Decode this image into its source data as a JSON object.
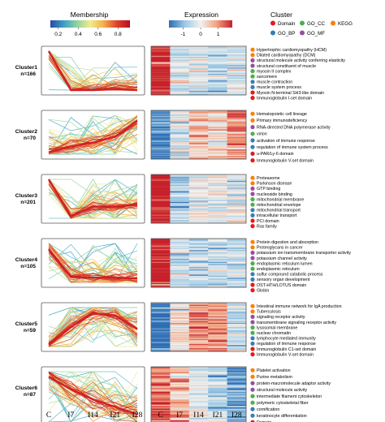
{
  "legends": {
    "membership": {
      "title": "Membership",
      "ticks": [
        "0.2",
        "0.4",
        "0.6",
        "0.8"
      ],
      "tick_values": [
        0.2,
        0.4,
        0.6,
        0.8
      ],
      "range": [
        0.12,
        0.92
      ]
    },
    "expression": {
      "title": "Expression",
      "ticks": [
        "-1",
        "0",
        "1"
      ],
      "tick_values": [
        -1,
        0,
        1
      ],
      "range": [
        -1.8,
        1.8
      ]
    },
    "cluster": {
      "title": "Cluster",
      "items": [
        {
          "label": "Domain",
          "color": "#e41a1c"
        },
        {
          "label": "GO_CC",
          "color": "#4daf4a"
        },
        {
          "label": "KEGG",
          "color": "#ff7f00"
        },
        {
          "label": "GO_BP",
          "color": "#377eb8"
        },
        {
          "label": "GO_MF",
          "color": "#984ea3"
        }
      ]
    }
  },
  "colors": {
    "membership_scale": [
      "#2c4aa6",
      "#3aa0c8",
      "#8fd3a0",
      "#f1ec8a",
      "#f6b04a",
      "#e0432a",
      "#b40f20"
    ],
    "expression_scale": [
      "#2f6db3",
      "#9cc9e4",
      "#f3f1ee",
      "#f2a27f",
      "#c7202b"
    ],
    "centroid": "#d31f26"
  },
  "chart_data": {
    "type": "line",
    "x": [
      "C",
      "I7",
      "I14",
      "I21",
      "I28"
    ],
    "xlabels_style": "serif",
    "clusters": [
      {
        "name": "Cluster1",
        "n_label": "n=166",
        "centroid": [
          1.0,
          0.0,
          0.0,
          0.02,
          0.0
        ],
        "heatmap_profile": [
          1.9,
          -0.3,
          -0.35,
          -0.4,
          -0.35
        ],
        "terms": [
          {
            "label": "Hypertrophic cardiomyopathy (HCM)",
            "category": "KEGG"
          },
          {
            "label": "Dilated cardiomyopathy (DCM)",
            "category": "KEGG"
          },
          {
            "label": "structural molecule activity conferring elasticity",
            "category": "GO_MF"
          },
          {
            "label": "structural constituent of muscle",
            "category": "GO_MF"
          },
          {
            "label": "myosin II complex",
            "category": "GO_CC"
          },
          {
            "label": "sarcomere",
            "category": "GO_CC"
          },
          {
            "label": "muscle contraction",
            "category": "GO_BP"
          },
          {
            "label": "muscle system process",
            "category": "GO_BP"
          },
          {
            "label": "Myosin N-terminal SH3-like domain",
            "category": "Domain"
          },
          {
            "label": "Immunoglobulin I-set domain",
            "category": "Domain"
          }
        ]
      },
      {
        "name": "Cluster2",
        "n_label": "n=70",
        "centroid": [
          0.05,
          0.2,
          0.3,
          0.45,
          0.85
        ],
        "heatmap_profile": [
          -1.5,
          -0.2,
          0.5,
          0.3,
          1.0
        ],
        "terms": [
          {
            "label": "Hematopoietic cell lineage",
            "category": "KEGG"
          },
          {
            "label": "Primary immunodeficiency",
            "category": "KEGG"
          },
          {
            "label": "RNA-directed DNA polymerase activity",
            "category": "GO_MF"
          },
          {
            "label": "virion",
            "category": "GO_CC"
          },
          {
            "label": "activation of immune response",
            "category": "GO_BP"
          },
          {
            "label": "regulation of immune system process",
            "category": "GO_BP"
          },
          {
            "label": "u-PAR/Ly-6 domain",
            "category": "Domain"
          },
          {
            "label": "Immunoglobulin V-set domain",
            "category": "Domain"
          }
        ]
      },
      {
        "name": "Cluster3",
        "n_label": "n=201",
        "centroid": [
          1.0,
          0.05,
          0.3,
          0.3,
          0.35
        ],
        "heatmap_profile": [
          1.9,
          -0.6,
          -0.1,
          -0.1,
          -0.15
        ],
        "terms": [
          {
            "label": "Proteasome",
            "category": "KEGG"
          },
          {
            "label": "Parkinson disease",
            "category": "KEGG"
          },
          {
            "label": "GTP binding",
            "category": "GO_MF"
          },
          {
            "label": "nucleoside binding",
            "category": "GO_MF"
          },
          {
            "label": "mitochondrial membrane",
            "category": "GO_CC"
          },
          {
            "label": "mitochondrial envelope",
            "category": "GO_CC"
          },
          {
            "label": "mitochondrial transport",
            "category": "GO_BP"
          },
          {
            "label": "intracellular transport",
            "category": "GO_BP"
          },
          {
            "label": "PCI domain",
            "category": "Domain"
          },
          {
            "label": "Ras family",
            "category": "Domain"
          }
        ]
      },
      {
        "name": "Cluster4",
        "n_label": "n=105",
        "centroid": [
          0.85,
          0.15,
          0.12,
          0.12,
          0.1
        ],
        "heatmap_profile": [
          1.9,
          -0.4,
          -0.45,
          -0.5,
          -0.45
        ],
        "terms": [
          {
            "label": "Protein digestion and absorption",
            "category": "KEGG"
          },
          {
            "label": "Proteoglycans in cancer",
            "category": "KEGG"
          },
          {
            "label": "potassium ion transmembrane transporter activity",
            "category": "GO_MF"
          },
          {
            "label": "potassium channel activity",
            "category": "GO_MF"
          },
          {
            "label": "endoplasmic reticulum lumen",
            "category": "GO_CC"
          },
          {
            "label": "endoplasmic reticulum",
            "category": "GO_CC"
          },
          {
            "label": "sulfur compound catabolic process",
            "category": "GO_BP"
          },
          {
            "label": "sensory organ development",
            "category": "GO_BP"
          },
          {
            "label": "OST-HTH/LOTUS domain",
            "category": "Domain"
          },
          {
            "label": "Globin",
            "category": "Domain"
          }
        ]
      },
      {
        "name": "Cluster5",
        "n_label": "n=59",
        "centroid": [
          0.05,
          0.5,
          0.85,
          0.8,
          0.45
        ],
        "heatmap_profile": [
          -1.7,
          0.1,
          0.9,
          1.0,
          -0.5
        ],
        "terms": [
          {
            "label": "Intestinal immune network for IgA production",
            "category": "KEGG"
          },
          {
            "label": "Tuberculosis",
            "category": "KEGG"
          },
          {
            "label": "signaling receptor activity",
            "category": "GO_MF"
          },
          {
            "label": "transmembrane signaling receptor activity",
            "category": "GO_MF"
          },
          {
            "label": "lysosomal membrane",
            "category": "GO_CC"
          },
          {
            "label": "nuclear chromatin",
            "category": "GO_CC"
          },
          {
            "label": "lymphocyte mediated immunity",
            "category": "GO_BP"
          },
          {
            "label": "regulation of immune response",
            "category": "GO_BP"
          },
          {
            "label": "Immunoglobulin C1-set domain",
            "category": "Domain"
          },
          {
            "label": "Immunoglobulin V-set domain",
            "category": "Domain"
          }
        ]
      },
      {
        "name": "Cluster6",
        "n_label": "n=87",
        "centroid": [
          0.9,
          0.65,
          0.45,
          0.3,
          0.15
        ],
        "heatmap_profile": [
          1.3,
          0.6,
          -0.1,
          -0.6,
          -1.3
        ],
        "terms": [
          {
            "label": "Platelet activation",
            "category": "KEGG"
          },
          {
            "label": "Purine metabolism",
            "category": "KEGG"
          },
          {
            "label": "protein-macromolecule adaptor activity",
            "category": "GO_MF"
          },
          {
            "label": "structural molecule activity",
            "category": "GO_MF"
          },
          {
            "label": "intermediate filament cytoskeleton",
            "category": "GO_CC"
          },
          {
            "label": "polymeric cytoskeletal fiber",
            "category": "GO_CC"
          },
          {
            "label": "cornification",
            "category": "GO_BP"
          },
          {
            "label": "keratinocyte differentiation",
            "category": "GO_BP"
          },
          {
            "label": "Domain",
            "category": "Domain"
          },
          {
            "label": "Variant SH3 domain",
            "category": "Domain"
          }
        ]
      }
    ]
  }
}
